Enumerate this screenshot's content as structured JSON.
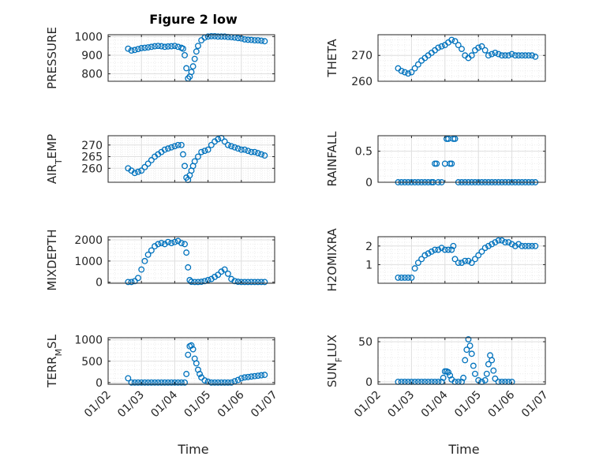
{
  "figure": {
    "title": "Figure 2 low"
  },
  "colors": {
    "marker": "#0072bd",
    "axis": "#262626",
    "grid": "#dfdfdf",
    "minor_grid": "#ececec"
  },
  "chart_data": [
    {
      "type": "scatter",
      "ylabel": "PRESSURE",
      "ylim": [
        760,
        1010
      ],
      "yticks": [
        800,
        900,
        1000
      ],
      "xlim": [
        2,
        7
      ],
      "xticks": [
        2,
        3,
        4,
        5,
        6,
        7
      ],
      "xticklabels": [
        "01/02",
        "01/03",
        "01/04",
        "01/05",
        "01/06",
        "01/07"
      ],
      "x": [
        2.6,
        2.7,
        2.8,
        2.9,
        3.0,
        3.1,
        3.2,
        3.3,
        3.4,
        3.5,
        3.6,
        3.7,
        3.8,
        3.9,
        4.0,
        4.1,
        4.2,
        4.25,
        4.3,
        4.35,
        4.4,
        4.45,
        4.5,
        4.55,
        4.6,
        4.65,
        4.7,
        4.8,
        4.9,
        5.0,
        5.1,
        5.2,
        5.3,
        5.4,
        5.5,
        5.6,
        5.7,
        5.8,
        5.9,
        6.0,
        6.1,
        6.2,
        6.3,
        6.4,
        6.5,
        6.6,
        6.7
      ],
      "y": [
        935,
        925,
        928,
        933,
        938,
        940,
        942,
        945,
        948,
        950,
        948,
        945,
        947,
        948,
        950,
        945,
        940,
        935,
        900,
        830,
        775,
        785,
        810,
        840,
        880,
        920,
        950,
        980,
        995,
        1000,
        1002,
        1002,
        1000,
        1000,
        1000,
        998,
        997,
        995,
        992,
        990,
        985,
        983,
        982,
        980,
        980,
        978,
        975
      ]
    },
    {
      "type": "scatter",
      "ylabel": "THETA",
      "ylim": [
        260,
        278
      ],
      "yticks": [
        260,
        270
      ],
      "xlim": [
        2,
        7
      ],
      "xticks": [
        2,
        3,
        4,
        5,
        6,
        7
      ],
      "xticklabels": [
        "01/02",
        "01/03",
        "01/04",
        "01/05",
        "01/06",
        "01/07"
      ],
      "x": [
        2.6,
        2.7,
        2.8,
        2.9,
        3.0,
        3.1,
        3.2,
        3.3,
        3.4,
        3.5,
        3.6,
        3.7,
        3.8,
        3.9,
        4.0,
        4.1,
        4.2,
        4.3,
        4.4,
        4.5,
        4.6,
        4.7,
        4.8,
        4.9,
        5.0,
        5.1,
        5.2,
        5.3,
        5.4,
        5.5,
        5.6,
        5.7,
        5.8,
        5.9,
        6.0,
        6.1,
        6.2,
        6.3,
        6.4,
        6.5,
        6.6,
        6.7
      ],
      "y": [
        265,
        264,
        263.5,
        263,
        263.5,
        265,
        266.5,
        268,
        269,
        270,
        271,
        272,
        273,
        273.5,
        274,
        275,
        276,
        275.5,
        274,
        272.5,
        270,
        269,
        270,
        272,
        273,
        273.5,
        272,
        270,
        270.5,
        271,
        270.5,
        270,
        270,
        270,
        270.5,
        270,
        270,
        270,
        270,
        270,
        270,
        269.5
      ]
    },
    {
      "type": "scatter",
      "ylabel": "AIR_TEMP",
      "ylim": [
        254,
        274
      ],
      "yticks": [
        260,
        265,
        270
      ],
      "xlim": [
        2,
        7
      ],
      "xticks": [
        2,
        3,
        4,
        5,
        6,
        7
      ],
      "xticklabels": [
        "01/02",
        "01/03",
        "01/04",
        "01/05",
        "01/06",
        "01/07"
      ],
      "x": [
        2.6,
        2.7,
        2.8,
        2.9,
        3.0,
        3.1,
        3.2,
        3.3,
        3.4,
        3.5,
        3.6,
        3.7,
        3.8,
        3.9,
        4.0,
        4.1,
        4.2,
        4.25,
        4.3,
        4.35,
        4.4,
        4.45,
        4.5,
        4.55,
        4.6,
        4.7,
        4.8,
        4.9,
        5.0,
        5.1,
        5.2,
        5.3,
        5.4,
        5.5,
        5.6,
        5.7,
        5.8,
        5.9,
        6.0,
        6.1,
        6.2,
        6.3,
        6.4,
        6.5,
        6.6,
        6.7
      ],
      "y": [
        260,
        259,
        258,
        258.5,
        259,
        260.5,
        262,
        263.5,
        265,
        266,
        267,
        268,
        268.5,
        269,
        269.5,
        270,
        270,
        266,
        261,
        256,
        255,
        257,
        259,
        261,
        263,
        265,
        267,
        267.5,
        268,
        270,
        271.5,
        272.5,
        273,
        271.5,
        270,
        269.5,
        269,
        268.5,
        268,
        268,
        267.5,
        267,
        267,
        266.5,
        266,
        265.5
      ]
    },
    {
      "type": "scatter",
      "ylabel": "RAINFALL",
      "ylim": [
        0,
        0.75
      ],
      "yticks": [
        0,
        0.5
      ],
      "xlim": [
        2,
        7
      ],
      "xticks": [
        2,
        3,
        4,
        5,
        6,
        7
      ],
      "xticklabels": [
        "01/02",
        "01/03",
        "01/04",
        "01/05",
        "01/06",
        "01/07"
      ],
      "x": [
        2.6,
        2.7,
        2.8,
        2.9,
        3.0,
        3.1,
        3.2,
        3.3,
        3.4,
        3.5,
        3.6,
        3.65,
        3.7,
        3.75,
        3.8,
        3.9,
        4.0,
        4.05,
        4.1,
        4.15,
        4.2,
        4.25,
        4.3,
        4.4,
        4.5,
        4.6,
        4.7,
        4.8,
        4.9,
        5.0,
        5.1,
        5.2,
        5.3,
        5.4,
        5.5,
        5.6,
        5.7,
        5.8,
        5.9,
        6.0,
        6.1,
        6.2,
        6.3,
        6.4,
        6.5,
        6.6,
        6.7
      ],
      "y": [
        0,
        0,
        0,
        0,
        0,
        0,
        0,
        0,
        0,
        0,
        0,
        0,
        0.3,
        0.3,
        0,
        0,
        0.3,
        0.7,
        0.7,
        0.3,
        0.3,
        0.7,
        0.7,
        0,
        0,
        0,
        0,
        0,
        0,
        0,
        0,
        0,
        0,
        0,
        0,
        0,
        0,
        0,
        0,
        0,
        0,
        0,
        0,
        0,
        0,
        0,
        0
      ]
    },
    {
      "type": "scatter",
      "ylabel": "MIXDEPTH",
      "ylim": [
        -50,
        2150
      ],
      "yticks": [
        0,
        1000,
        2000
      ],
      "xlim": [
        2,
        7
      ],
      "xticks": [
        2,
        3,
        4,
        5,
        6,
        7
      ],
      "xticklabels": [
        "01/02",
        "01/03",
        "01/04",
        "01/05",
        "01/06",
        "01/07"
      ],
      "x": [
        2.6,
        2.7,
        2.8,
        2.9,
        3.0,
        3.1,
        3.2,
        3.3,
        3.4,
        3.5,
        3.6,
        3.7,
        3.8,
        3.9,
        4.0,
        4.1,
        4.2,
        4.3,
        4.35,
        4.4,
        4.45,
        4.5,
        4.6,
        4.7,
        4.8,
        4.9,
        5.0,
        5.1,
        5.2,
        5.3,
        5.4,
        5.5,
        5.6,
        5.7,
        5.8,
        5.9,
        6.0,
        6.1,
        6.2,
        6.3,
        6.4,
        6.5,
        6.6,
        6.7
      ],
      "y": [
        10,
        10,
        50,
        200,
        600,
        1000,
        1300,
        1500,
        1700,
        1800,
        1850,
        1800,
        1900,
        1850,
        1900,
        1950,
        1850,
        1800,
        1400,
        700,
        100,
        20,
        10,
        10,
        20,
        50,
        100,
        150,
        250,
        350,
        500,
        600,
        400,
        150,
        50,
        20,
        10,
        10,
        10,
        10,
        10,
        10,
        10,
        10
      ]
    },
    {
      "type": "scatter",
      "ylabel": "H2OMIXRA",
      "ylim": [
        0,
        2.5
      ],
      "yticks": [
        1,
        2
      ],
      "xlim": [
        2,
        7
      ],
      "xticks": [
        2,
        3,
        4,
        5,
        6,
        7
      ],
      "xticklabels": [
        "01/02",
        "01/03",
        "01/04",
        "01/05",
        "01/06",
        "01/07"
      ],
      "x": [
        2.6,
        2.7,
        2.8,
        2.9,
        3.0,
        3.1,
        3.2,
        3.3,
        3.4,
        3.5,
        3.6,
        3.7,
        3.8,
        3.9,
        4.0,
        4.1,
        4.2,
        4.25,
        4.3,
        4.4,
        4.5,
        4.6,
        4.7,
        4.8,
        4.9,
        5.0,
        5.1,
        5.2,
        5.3,
        5.4,
        5.5,
        5.6,
        5.7,
        5.8,
        5.9,
        6.0,
        6.1,
        6.2,
        6.3,
        6.4,
        6.5,
        6.6,
        6.7
      ],
      "y": [
        0.3,
        0.3,
        0.3,
        0.3,
        0.3,
        0.8,
        1.1,
        1.3,
        1.5,
        1.6,
        1.7,
        1.8,
        1.8,
        1.9,
        1.8,
        1.8,
        1.8,
        2.0,
        1.3,
        1.1,
        1.1,
        1.2,
        1.2,
        1.1,
        1.3,
        1.5,
        1.7,
        1.9,
        2.0,
        2.1,
        2.2,
        2.3,
        2.3,
        2.2,
        2.2,
        2.1,
        2.0,
        2.1,
        2.0,
        2.0,
        2.0,
        2.0,
        2.0
      ]
    },
    {
      "type": "scatter",
      "ylabel": "TERR_MSL",
      "ylim": [
        -40,
        1050
      ],
      "yticks": [
        0,
        500,
        1000
      ],
      "xlim": [
        2,
        7
      ],
      "xticks": [
        2,
        3,
        4,
        5,
        6,
        7
      ],
      "xticklabels": [
        "01/02",
        "01/03",
        "01/04",
        "01/05",
        "01/06",
        "01/07"
      ],
      "x": [
        2.6,
        2.7,
        2.8,
        2.9,
        3.0,
        3.1,
        3.2,
        3.3,
        3.4,
        3.5,
        3.6,
        3.7,
        3.8,
        3.9,
        4.0,
        4.1,
        4.2,
        4.3,
        4.35,
        4.4,
        4.45,
        4.5,
        4.55,
        4.6,
        4.65,
        4.7,
        4.75,
        4.8,
        4.9,
        5.0,
        5.1,
        5.2,
        5.3,
        5.4,
        5.5,
        5.6,
        5.7,
        5.8,
        5.9,
        6.0,
        6.1,
        6.2,
        6.3,
        6.4,
        6.5,
        6.6,
        6.7
      ],
      "y": [
        100,
        0,
        0,
        0,
        0,
        0,
        0,
        0,
        0,
        0,
        0,
        0,
        0,
        0,
        0,
        0,
        0,
        0,
        200,
        650,
        850,
        870,
        780,
        560,
        450,
        300,
        200,
        120,
        50,
        20,
        0,
        0,
        0,
        0,
        0,
        0,
        0,
        30,
        60,
        100,
        120,
        130,
        140,
        150,
        160,
        170,
        180
      ]
    },
    {
      "type": "scatter",
      "ylabel": "SUN_FLUX",
      "ylim": [
        -3,
        55
      ],
      "yticks": [
        0,
        50
      ],
      "xlim": [
        2,
        7
      ],
      "xticks": [
        2,
        3,
        4,
        5,
        6,
        7
      ],
      "xticklabels": [
        "01/02",
        "01/03",
        "01/04",
        "01/05",
        "01/06",
        "01/07"
      ],
      "x": [
        2.6,
        2.7,
        2.8,
        2.9,
        3.0,
        3.1,
        3.2,
        3.3,
        3.4,
        3.5,
        3.6,
        3.7,
        3.8,
        3.9,
        3.95,
        4.0,
        4.05,
        4.1,
        4.15,
        4.2,
        4.3,
        4.4,
        4.5,
        4.55,
        4.6,
        4.65,
        4.7,
        4.75,
        4.8,
        4.85,
        4.9,
        5.0,
        5.1,
        5.2,
        5.25,
        5.3,
        5.35,
        5.4,
        5.45,
        5.5,
        5.6,
        5.7,
        5.8,
        5.9,
        6.0
      ],
      "y": [
        0,
        0,
        0,
        0,
        0,
        0,
        0,
        0,
        0,
        0,
        0,
        0,
        0,
        0,
        5,
        13,
        13,
        12,
        8,
        3,
        0,
        0,
        0,
        5,
        27,
        40,
        53,
        45,
        35,
        20,
        10,
        2,
        0,
        2,
        10,
        22,
        33,
        27,
        14,
        4,
        0,
        0,
        0,
        0,
        0
      ]
    }
  ],
  "xlabels": {
    "left": "Time",
    "right": "Time"
  }
}
